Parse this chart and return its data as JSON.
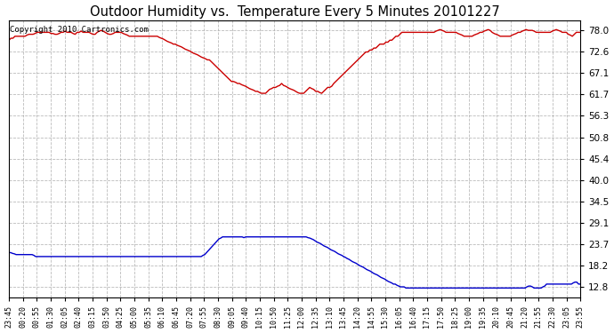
{
  "title": "Outdoor Humidity vs.  Temperature Every 5 Minutes 20101227",
  "copyright": "Copyright 2010 Cartronics.com",
  "background_color": "#ffffff",
  "plot_bg_color": "#ffffff",
  "grid_color": "#aaaaaa",
  "line_color_humidity": "#cc0000",
  "line_color_temperature": "#0000cc",
  "yticks": [
    12.8,
    18.2,
    23.7,
    29.1,
    34.5,
    40.0,
    45.4,
    50.8,
    56.3,
    61.7,
    67.1,
    72.6,
    78.0
  ],
  "ymin": 10.0,
  "ymax": 80.5,
  "xtick_labels": [
    "23:45",
    "00:20",
    "00:55",
    "01:30",
    "02:05",
    "02:40",
    "03:15",
    "03:50",
    "04:25",
    "05:00",
    "05:35",
    "06:10",
    "06:45",
    "07:20",
    "07:55",
    "08:30",
    "09:05",
    "09:40",
    "10:15",
    "10:50",
    "11:25",
    "12:00",
    "12:35",
    "13:10",
    "13:45",
    "14:20",
    "14:55",
    "15:30",
    "16:05",
    "16:40",
    "17:15",
    "17:50",
    "18:25",
    "19:00",
    "19:35",
    "20:10",
    "20:45",
    "21:20",
    "21:55",
    "22:30",
    "23:05",
    "23:55"
  ],
  "humidity_data": [
    75.5,
    76.0,
    76.0,
    76.5,
    76.5,
    76.5,
    76.5,
    76.5,
    76.5,
    76.8,
    77.0,
    77.0,
    77.0,
    77.2,
    77.5,
    77.5,
    77.5,
    77.5,
    77.5,
    77.5,
    77.5,
    77.2,
    77.2,
    77.0,
    77.0,
    77.2,
    77.5,
    77.5,
    77.8,
    77.5,
    77.5,
    77.5,
    77.2,
    77.0,
    77.5,
    77.5,
    77.8,
    77.5,
    77.5,
    77.5,
    77.5,
    77.2,
    77.0,
    77.0,
    77.5,
    77.8,
    78.0,
    77.8,
    77.5,
    77.2,
    77.0,
    77.0,
    77.2,
    77.5,
    77.5,
    77.5,
    77.5,
    77.2,
    77.0,
    76.8,
    76.5,
    76.5,
    76.5,
    76.5,
    76.5,
    76.5,
    76.5,
    76.5,
    76.5,
    76.5,
    76.5,
    76.5,
    76.5,
    76.5,
    76.5,
    76.2,
    76.0,
    75.8,
    75.5,
    75.2,
    75.0,
    74.8,
    74.5,
    74.5,
    74.2,
    74.0,
    73.8,
    73.5,
    73.2,
    73.0,
    72.8,
    72.5,
    72.2,
    72.0,
    71.8,
    71.5,
    71.2,
    71.0,
    70.8,
    70.5,
    70.5,
    70.0,
    69.5,
    69.0,
    68.5,
    68.0,
    67.5,
    67.0,
    66.5,
    66.0,
    65.5,
    65.0,
    65.0,
    64.8,
    64.5,
    64.5,
    64.2,
    64.0,
    63.8,
    63.5,
    63.2,
    63.0,
    62.8,
    62.5,
    62.5,
    62.2,
    62.0,
    62.0,
    62.0,
    62.5,
    63.0,
    63.2,
    63.5,
    63.5,
    63.8,
    64.0,
    64.5,
    64.0,
    63.8,
    63.5,
    63.2,
    63.0,
    62.8,
    62.5,
    62.2,
    62.0,
    62.0,
    62.0,
    62.5,
    63.0,
    63.5,
    63.2,
    63.0,
    62.5,
    62.5,
    62.2,
    62.0,
    62.5,
    63.0,
    63.5,
    63.5,
    63.8,
    64.5,
    65.0,
    65.5,
    66.0,
    66.5,
    67.0,
    67.5,
    68.0,
    68.5,
    69.0,
    69.5,
    70.0,
    70.5,
    71.0,
    71.5,
    72.0,
    72.5,
    72.5,
    73.0,
    73.0,
    73.5,
    73.5,
    74.0,
    74.5,
    74.5,
    74.5,
    75.0,
    75.0,
    75.5,
    75.5,
    76.0,
    76.5,
    76.5,
    77.0,
    77.5,
    77.5,
    77.5,
    77.5,
    77.5,
    77.5,
    77.5,
    77.5,
    77.5,
    77.5,
    77.5,
    77.5,
    77.5,
    77.5,
    77.5,
    77.5,
    77.5,
    77.8,
    78.0,
    78.2,
    78.0,
    77.8,
    77.5,
    77.5,
    77.5,
    77.5,
    77.5,
    77.5,
    77.2,
    77.0,
    76.8,
    76.5,
    76.5,
    76.5,
    76.5,
    76.5,
    76.8,
    77.0,
    77.2,
    77.5,
    77.5,
    77.8,
    78.0,
    78.2,
    78.0,
    77.5,
    77.2,
    77.0,
    76.8,
    76.5,
    76.5,
    76.5,
    76.5,
    76.5,
    76.5,
    76.8,
    77.0,
    77.2,
    77.5,
    77.5,
    77.8,
    78.0,
    78.2,
    78.0,
    78.0,
    78.0,
    77.8,
    77.5,
    77.5,
    77.5,
    77.5,
    77.5,
    77.5,
    77.5,
    77.5,
    77.8,
    78.0,
    78.2,
    78.0,
    77.8,
    77.5,
    77.5,
    77.5,
    77.0,
    76.8,
    76.5,
    77.0,
    77.5,
    77.5,
    77.5
  ],
  "temperature_data": [
    21.5,
    21.5,
    21.3,
    21.2,
    21.0,
    21.0,
    21.0,
    21.0,
    21.0,
    21.0,
    21.0,
    21.0,
    21.0,
    21.0,
    20.8,
    20.5,
    20.5,
    20.5,
    20.5,
    20.5,
    20.5,
    20.5,
    20.5,
    20.5,
    20.5,
    20.5,
    20.5,
    20.5,
    20.5,
    20.5,
    20.5,
    20.5,
    20.5,
    20.5,
    20.5,
    20.5,
    20.5,
    20.5,
    20.5,
    20.5,
    20.5,
    20.5,
    20.5,
    20.5,
    20.5,
    20.5,
    20.5,
    20.5,
    20.5,
    20.5,
    20.5,
    20.5,
    20.5,
    20.5,
    20.5,
    20.5,
    20.5,
    20.5,
    20.5,
    20.5,
    20.5,
    20.5,
    20.5,
    20.5,
    20.5,
    20.5,
    20.5,
    20.5,
    20.5,
    20.5,
    20.5,
    20.5,
    20.5,
    20.5,
    20.5,
    20.5,
    20.5,
    20.5,
    20.5,
    20.5,
    20.5,
    20.5,
    20.5,
    20.5,
    20.5,
    20.5,
    20.5,
    20.5,
    20.5,
    20.5,
    20.5,
    20.5,
    20.5,
    20.5,
    20.5,
    20.5,
    20.5,
    20.5,
    20.5,
    20.5,
    20.5,
    20.5,
    20.5,
    20.5,
    20.5,
    20.5,
    20.5,
    20.5,
    20.5,
    20.8,
    21.0,
    21.5,
    22.0,
    22.5,
    23.0,
    23.5,
    24.0,
    24.5,
    25.0,
    25.2,
    25.5,
    25.5,
    25.5,
    25.5,
    25.5,
    25.5,
    25.5,
    25.5,
    25.5,
    25.5,
    25.5,
    25.5,
    25.3,
    25.5,
    25.5,
    25.5,
    25.5,
    25.5,
    25.5,
    25.5,
    25.5,
    25.5,
    25.5,
    25.5,
    25.5,
    25.5,
    25.5,
    25.5,
    25.5,
    25.5,
    25.5,
    25.5,
    25.5,
    25.5,
    25.5,
    25.5,
    25.5,
    25.5,
    25.5,
    25.5,
    25.5,
    25.5,
    25.5,
    25.5,
    25.5,
    25.5,
    25.5,
    25.5,
    25.3,
    25.2,
    25.0,
    24.8,
    24.5,
    24.2,
    24.0,
    23.8,
    23.5,
    23.2,
    23.0,
    22.8,
    22.5,
    22.2,
    22.0,
    21.8,
    21.5,
    21.2,
    21.0,
    20.8,
    20.5,
    20.3,
    20.0,
    19.8,
    19.5,
    19.2,
    19.0,
    18.8,
    18.5,
    18.2,
    18.0,
    17.8,
    17.5,
    17.2,
    17.0,
    16.8,
    16.5,
    16.2,
    16.0,
    15.8,
    15.5,
    15.2,
    15.0,
    14.8,
    14.5,
    14.2,
    14.0,
    13.8,
    13.5,
    13.5,
    13.2,
    13.0,
    12.8,
    12.8,
    12.8,
    12.5,
    12.5,
    12.5,
    12.5,
    12.5,
    12.5,
    12.5,
    12.5,
    12.5,
    12.5,
    12.5,
    12.5,
    12.5,
    12.5,
    12.5,
    12.5,
    12.5,
    12.5,
    12.5,
    12.5,
    12.5,
    12.5,
    12.5,
    12.5,
    12.5,
    12.5,
    12.5,
    12.5,
    12.5,
    12.5,
    12.5,
    12.5,
    12.5,
    12.5,
    12.5,
    12.5,
    12.5,
    12.5,
    12.5,
    12.5,
    12.5,
    12.5,
    12.5,
    12.5,
    12.5,
    12.5,
    12.5,
    12.5,
    12.5,
    12.5,
    12.5,
    12.5,
    12.5,
    12.5,
    12.5,
    12.5,
    12.5,
    12.5,
    12.5,
    12.5,
    12.5,
    12.5,
    12.5,
    12.5,
    12.5,
    12.5,
    12.5,
    12.5,
    12.8,
    13.0,
    13.0,
    12.8,
    12.5,
    12.5,
    12.5,
    12.5,
    12.5,
    12.8,
    13.0,
    13.5,
    13.5,
    13.5,
    13.5,
    13.5,
    13.5,
    13.5,
    13.5,
    13.5,
    13.5,
    13.5,
    13.5,
    13.5,
    13.5,
    13.5,
    13.8,
    14.0,
    14.0,
    13.5,
    13.5
  ]
}
